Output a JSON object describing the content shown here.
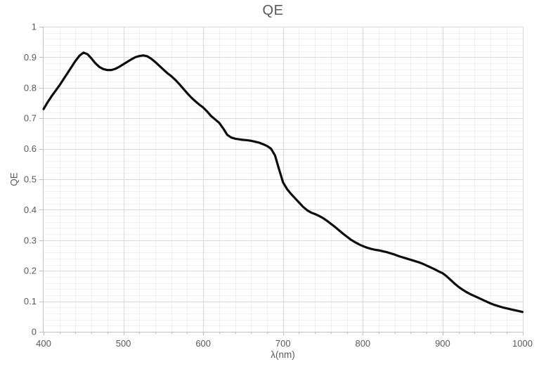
{
  "chart_data": {
    "type": "line",
    "title": "QE",
    "xlabel": "λ(nm)",
    "ylabel": "QE",
    "xlim": [
      400,
      1000
    ],
    "ylim": [
      0,
      1
    ],
    "x_major_step": 100,
    "x_minor_step": 20,
    "y_major_step": 0.1,
    "y_minor_step": 0.02,
    "x_tick_labels": [
      "400",
      "500",
      "600",
      "700",
      "800",
      "900",
      "1000"
    ],
    "y_tick_labels": [
      "0",
      "0.1",
      "0.2",
      "0.3",
      "0.4",
      "0.5",
      "0.6",
      "0.7",
      "0.8",
      "0.9",
      "1"
    ],
    "grid": "major+minor",
    "legend": "none",
    "colors": {
      "text": "#595959",
      "major_grid": "#d9d9d9",
      "minor_grid": "#efefef",
      "axis": "#bfbfbf",
      "line": "#0d0d0d"
    },
    "line_width": 3.2,
    "series": [
      {
        "name": "QE",
        "points": [
          [
            400,
            0.73
          ],
          [
            405,
            0.752
          ],
          [
            410,
            0.772
          ],
          [
            415,
            0.79
          ],
          [
            420,
            0.808
          ],
          [
            425,
            0.828
          ],
          [
            430,
            0.848
          ],
          [
            435,
            0.868
          ],
          [
            440,
            0.888
          ],
          [
            445,
            0.905
          ],
          [
            450,
            0.915
          ],
          [
            455,
            0.91
          ],
          [
            460,
            0.896
          ],
          [
            465,
            0.88
          ],
          [
            470,
            0.868
          ],
          [
            475,
            0.861
          ],
          [
            480,
            0.858
          ],
          [
            485,
            0.858
          ],
          [
            490,
            0.862
          ],
          [
            495,
            0.869
          ],
          [
            500,
            0.877
          ],
          [
            505,
            0.885
          ],
          [
            510,
            0.893
          ],
          [
            515,
            0.9
          ],
          [
            520,
            0.904
          ],
          [
            525,
            0.906
          ],
          [
            530,
            0.903
          ],
          [
            535,
            0.895
          ],
          [
            540,
            0.884
          ],
          [
            545,
            0.872
          ],
          [
            550,
            0.86
          ],
          [
            555,
            0.848
          ],
          [
            560,
            0.838
          ],
          [
            565,
            0.826
          ],
          [
            570,
            0.812
          ],
          [
            575,
            0.797
          ],
          [
            580,
            0.782
          ],
          [
            585,
            0.768
          ],
          [
            590,
            0.756
          ],
          [
            595,
            0.745
          ],
          [
            600,
            0.735
          ],
          [
            605,
            0.722
          ],
          [
            610,
            0.707
          ],
          [
            615,
            0.696
          ],
          [
            620,
            0.685
          ],
          [
            625,
            0.667
          ],
          [
            630,
            0.646
          ],
          [
            635,
            0.637
          ],
          [
            640,
            0.633
          ],
          [
            645,
            0.631
          ],
          [
            650,
            0.629
          ],
          [
            655,
            0.628
          ],
          [
            660,
            0.626
          ],
          [
            665,
            0.623
          ],
          [
            670,
            0.62
          ],
          [
            675,
            0.615
          ],
          [
            680,
            0.609
          ],
          [
            685,
            0.6
          ],
          [
            690,
            0.578
          ],
          [
            695,
            0.533
          ],
          [
            700,
            0.49
          ],
          [
            705,
            0.468
          ],
          [
            710,
            0.452
          ],
          [
            715,
            0.438
          ],
          [
            720,
            0.424
          ],
          [
            725,
            0.41
          ],
          [
            730,
            0.399
          ],
          [
            735,
            0.391
          ],
          [
            740,
            0.386
          ],
          [
            745,
            0.38
          ],
          [
            750,
            0.373
          ],
          [
            755,
            0.364
          ],
          [
            760,
            0.354
          ],
          [
            765,
            0.344
          ],
          [
            770,
            0.333
          ],
          [
            775,
            0.322
          ],
          [
            780,
            0.312
          ],
          [
            785,
            0.302
          ],
          [
            790,
            0.294
          ],
          [
            795,
            0.287
          ],
          [
            800,
            0.281
          ],
          [
            805,
            0.276
          ],
          [
            810,
            0.272
          ],
          [
            815,
            0.269
          ],
          [
            820,
            0.267
          ],
          [
            825,
            0.264
          ],
          [
            830,
            0.261
          ],
          [
            835,
            0.257
          ],
          [
            840,
            0.253
          ],
          [
            845,
            0.248
          ],
          [
            850,
            0.244
          ],
          [
            855,
            0.24
          ],
          [
            860,
            0.236
          ],
          [
            865,
            0.232
          ],
          [
            870,
            0.228
          ],
          [
            875,
            0.223
          ],
          [
            880,
            0.217
          ],
          [
            885,
            0.211
          ],
          [
            890,
            0.205
          ],
          [
            895,
            0.198
          ],
          [
            900,
            0.192
          ],
          [
            905,
            0.182
          ],
          [
            910,
            0.17
          ],
          [
            915,
            0.158
          ],
          [
            920,
            0.147
          ],
          [
            925,
            0.138
          ],
          [
            930,
            0.13
          ],
          [
            935,
            0.123
          ],
          [
            940,
            0.117
          ],
          [
            945,
            0.111
          ],
          [
            950,
            0.105
          ],
          [
            955,
            0.099
          ],
          [
            960,
            0.093
          ],
          [
            965,
            0.088
          ],
          [
            970,
            0.084
          ],
          [
            975,
            0.08
          ],
          [
            980,
            0.077
          ],
          [
            985,
            0.074
          ],
          [
            990,
            0.071
          ],
          [
            995,
            0.068
          ],
          [
            1000,
            0.065
          ]
        ]
      }
    ]
  }
}
